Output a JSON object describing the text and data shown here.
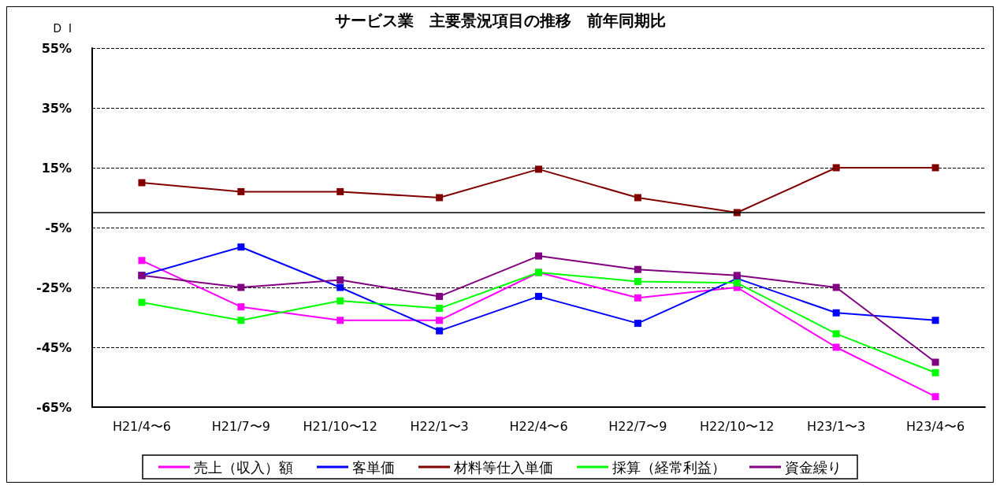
{
  "chart_data": {
    "type": "line",
    "title": "サービス業　主要景況項目の推移　前年同期比",
    "ylabel": "ＤＩ",
    "categories": [
      "H21/4〜6",
      "H21/7〜9",
      "H21/10〜12",
      "H22/1〜3",
      "H22/4〜6",
      "H22/7〜9",
      "H22/10〜12",
      "H23/1〜3",
      "H23/4〜6"
    ],
    "series": [
      {
        "name": "売上（収入）額",
        "color": "#ff00ff",
        "values": [
          -16,
          -31.5,
          -36,
          -36,
          -20,
          -28.5,
          -25,
          -45,
          -61.5
        ]
      },
      {
        "name": "客単価",
        "color": "#0000ff",
        "values": [
          -21,
          -11.5,
          -25,
          -39.5,
          -28,
          -37,
          -22,
          -33.5,
          -36
        ]
      },
      {
        "name": "材料等仕入単価",
        "color": "#800000",
        "values": [
          10,
          7,
          7,
          5,
          14.5,
          5,
          0,
          15,
          15
        ]
      },
      {
        "name": "採算（経常利益）",
        "color": "#00ff00",
        "values": [
          -30,
          -36,
          -29.5,
          -32,
          -20,
          -23,
          -23.5,
          -40.5,
          -53.5
        ]
      },
      {
        "name": "資金繰り",
        "color": "#800080",
        "values": [
          -21,
          -25,
          -22.5,
          -28,
          -14.5,
          -19,
          -21,
          -25,
          -50
        ]
      }
    ],
    "ylim": [
      -65,
      55
    ],
    "yticks": [
      {
        "value": -65,
        "label": "-65%"
      },
      {
        "value": -45,
        "label": "-45%"
      },
      {
        "value": -25,
        "label": "-25%"
      },
      {
        "value": -5,
        "label": "-5%"
      },
      {
        "value": 15,
        "label": "15%"
      },
      {
        "value": 35,
        "label": "35%"
      },
      {
        "value": 55,
        "label": "55%"
      }
    ],
    "ref_lines": [
      {
        "axis": "y",
        "value": 0,
        "color": "#000000",
        "line_style": "solid"
      }
    ],
    "grid": "y",
    "legend": "bottom",
    "marker": "square",
    "line_style": "solid"
  }
}
